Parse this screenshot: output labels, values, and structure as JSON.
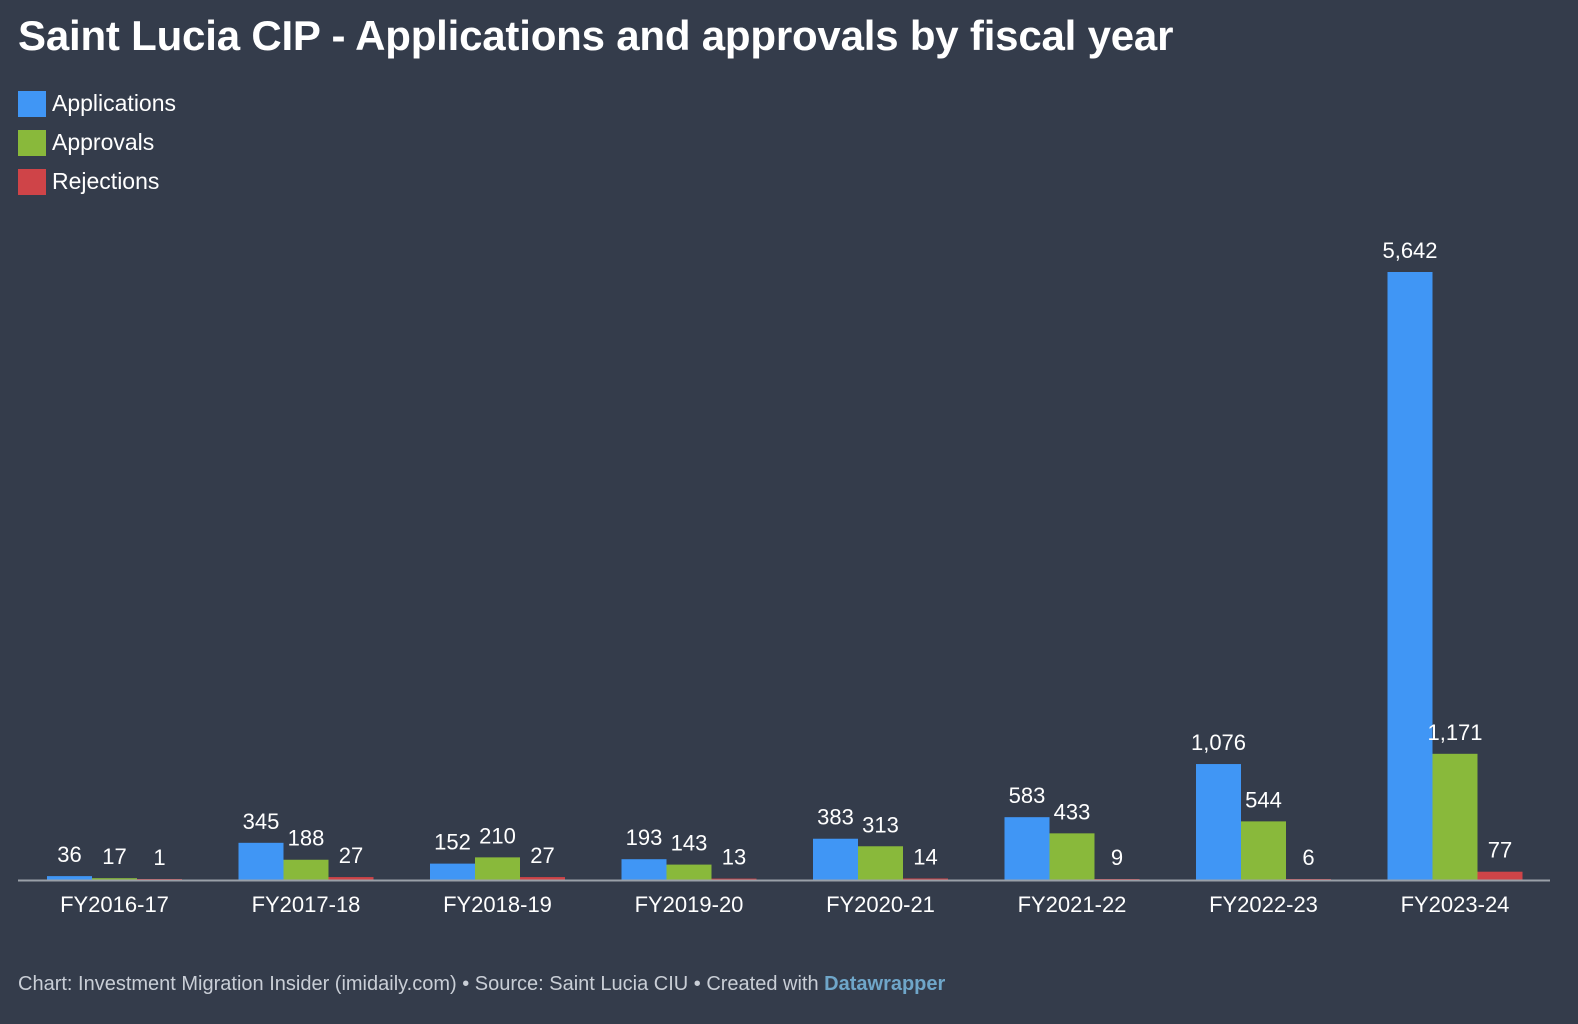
{
  "chart_data": {
    "type": "bar",
    "title": "Saint Lucia CIP - Applications and approvals by fiscal year",
    "categories": [
      "FY2016-17",
      "FY2017-18",
      "FY2018-19",
      "FY2019-20",
      "FY2020-21",
      "FY2021-22",
      "FY2022-23",
      "FY2023-24"
    ],
    "series": [
      {
        "name": "Applications",
        "color": "#4096f5",
        "values": [
          36,
          345,
          152,
          193,
          383,
          583,
          1076,
          5642
        ]
      },
      {
        "name": "Approvals",
        "color": "#89b93b",
        "values": [
          17,
          188,
          210,
          143,
          313,
          433,
          544,
          1171
        ]
      },
      {
        "name": "Rejections",
        "color": "#cf4448",
        "values": [
          1,
          27,
          27,
          13,
          14,
          9,
          6,
          77
        ]
      }
    ],
    "data_labels": [
      [
        "36",
        "345",
        "152",
        "193",
        "383",
        "583",
        "1,076",
        "5,642"
      ],
      [
        "17",
        "188",
        "210",
        "143",
        "313",
        "433",
        "544",
        "1,171"
      ],
      [
        "1",
        "27",
        "27",
        "13",
        "14",
        "9",
        "6",
        "77"
      ]
    ],
    "xlabel": "",
    "ylabel": "",
    "ylim": [
      0,
      5642
    ],
    "grid": false,
    "legend_position": "top-left"
  },
  "footer": {
    "credit": "Chart: Investment Migration Insider (imidaily.com) • Source: Saint Lucia CIU • Created with ",
    "link": "Datawrapper"
  },
  "colors": {
    "background": "#343c4b",
    "baseline": "#9aa0a8"
  }
}
